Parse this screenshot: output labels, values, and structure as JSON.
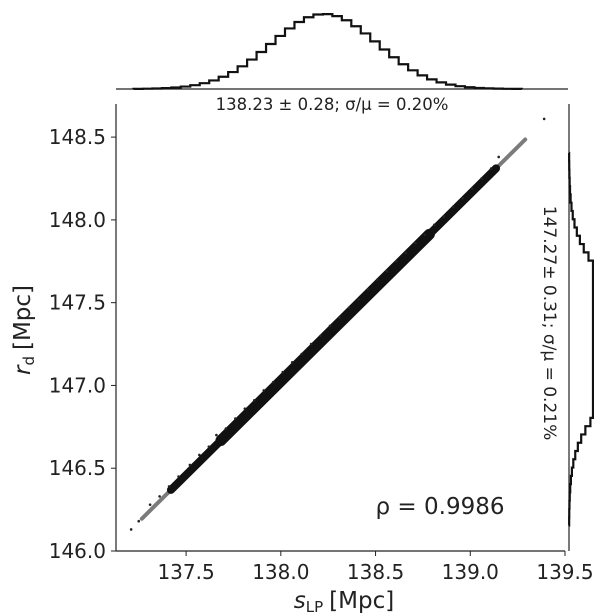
{
  "chart_data": [
    {
      "type": "scatter",
      "panel": "joint",
      "xlabel_main": "s",
      "xlabel_sub": "LP",
      "xlabel_unit": "[Mpc]",
      "ylabel_main": "r",
      "ylabel_sub": "d",
      "ylabel_unit": "[Mpc]",
      "xlim": [
        137.13,
        139.5
      ],
      "ylim": [
        146.0,
        148.7
      ],
      "xticks": [
        137.5,
        138.0,
        138.5,
        139.0,
        139.5
      ],
      "xtick_labels": [
        "137.5",
        "138.0",
        "138.5",
        "139.0",
        "139.5"
      ],
      "yticks": [
        146.0,
        146.5,
        147.0,
        147.5,
        148.0,
        148.5
      ],
      "ytick_labels": [
        "146.0",
        "146.5",
        "147.0",
        "147.5",
        "148.0",
        "148.5"
      ],
      "grid": false,
      "correlation_label": "ρ = 0.9986",
      "correlation": 0.9986,
      "mean": {
        "x": 138.23,
        "y": 147.27
      },
      "sigma": {
        "x": 0.28,
        "y": 0.31
      },
      "ridge": [
        [
          137.2,
          146.12
        ],
        [
          139.4,
          148.61
        ]
      ],
      "points": [
        [
          137.21,
          146.13
        ],
        [
          137.25,
          146.18
        ],
        [
          137.31,
          146.28
        ],
        [
          137.36,
          146.33
        ],
        [
          137.41,
          146.39
        ],
        [
          137.46,
          146.45
        ],
        [
          137.52,
          146.52
        ],
        [
          137.57,
          146.58
        ],
        [
          137.62,
          146.63
        ],
        [
          137.66,
          146.7
        ],
        [
          137.71,
          146.74
        ],
        [
          137.76,
          146.8
        ],
        [
          137.81,
          146.86
        ],
        [
          137.86,
          146.91
        ],
        [
          137.91,
          146.97
        ],
        [
          137.96,
          147.02
        ],
        [
          138.01,
          147.08
        ],
        [
          138.06,
          147.14
        ],
        [
          138.11,
          147.19
        ],
        [
          138.16,
          147.25
        ],
        [
          138.21,
          147.3
        ],
        [
          138.26,
          147.36
        ],
        [
          138.31,
          147.41
        ],
        [
          138.36,
          147.47
        ],
        [
          138.41,
          147.52
        ],
        [
          138.46,
          147.58
        ],
        [
          138.51,
          147.64
        ],
        [
          138.56,
          147.69
        ],
        [
          138.61,
          147.75
        ],
        [
          138.66,
          147.8
        ],
        [
          138.71,
          147.86
        ],
        [
          138.76,
          147.91
        ],
        [
          138.81,
          147.97
        ],
        [
          138.86,
          148.02
        ],
        [
          138.91,
          148.08
        ],
        [
          138.96,
          148.13
        ],
        [
          139.01,
          148.19
        ],
        [
          139.06,
          148.25
        ],
        [
          139.11,
          148.31
        ],
        [
          139.15,
          148.38
        ],
        [
          139.39,
          148.61
        ]
      ]
    },
    {
      "type": "histogram",
      "panel": "top",
      "variable": "s_LP",
      "annotation": "138.23 ± 0.28; σ/μ = 0.20%"
    },
    {
      "type": "histogram",
      "panel": "right",
      "variable": "r_d",
      "annotation": "147.27± 0.31; σ/μ = 0.21%"
    }
  ]
}
